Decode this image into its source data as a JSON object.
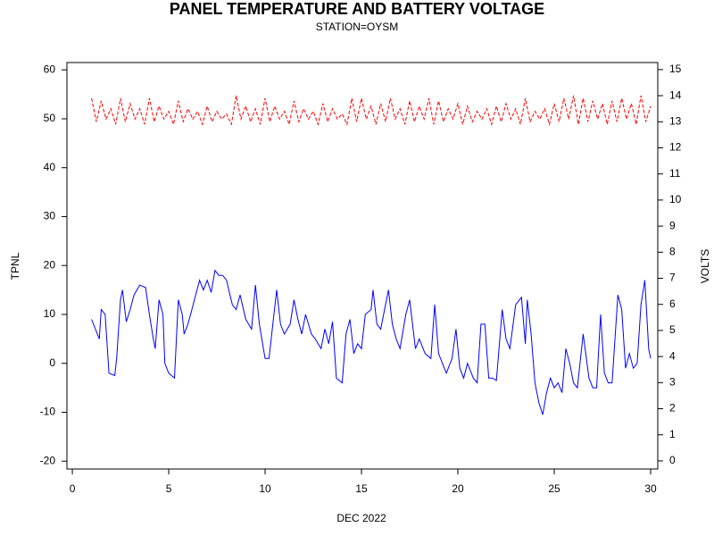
{
  "chart_data": {
    "type": "line",
    "title": "PANEL TEMPERATURE AND BATTERY VOLTAGE",
    "subtitle": "STATION=OYSM",
    "xlabel": "DEC 2022",
    "ylabel": "TPNL",
    "y2label": "VOLTS",
    "xlim": [
      -0.28,
      30.37
    ],
    "xticks": [
      0,
      5,
      10,
      15,
      20,
      25,
      30
    ],
    "ylim": [
      -21.6,
      61.5
    ],
    "yticks": [
      -20,
      -10,
      0,
      10,
      20,
      30,
      40,
      50,
      60
    ],
    "y2lim": [
      -0.31,
      15.27
    ],
    "y2ticks": [
      0,
      1,
      2,
      3,
      4,
      5,
      6,
      7,
      8,
      9,
      10,
      11,
      12,
      13,
      14,
      15
    ],
    "series": [
      {
        "name": "TPNL",
        "color": "#0000ff",
        "axis": "y",
        "x": [
          1.0,
          1.4,
          1.5,
          1.7,
          1.9,
          2.2,
          2.3,
          2.5,
          2.6,
          2.8,
          3.0,
          3.2,
          3.5,
          3.8,
          4.0,
          4.2,
          4.3,
          4.5,
          4.7,
          4.8,
          5.0,
          5.3,
          5.5,
          5.7,
          5.8,
          6.0,
          6.2,
          6.4,
          6.6,
          6.8,
          7.0,
          7.2,
          7.4,
          7.6,
          7.8,
          8.0,
          8.3,
          8.5,
          8.7,
          9.0,
          9.3,
          9.5,
          9.7,
          10.0,
          10.2,
          10.4,
          10.6,
          10.8,
          11.0,
          11.3,
          11.5,
          11.7,
          11.9,
          12.1,
          12.4,
          12.6,
          12.9,
          13.1,
          13.3,
          13.5,
          13.7,
          14.0,
          14.2,
          14.4,
          14.6,
          14.8,
          15.0,
          15.2,
          15.5,
          15.6,
          15.8,
          16.0,
          16.2,
          16.4,
          16.6,
          16.8,
          17.0,
          17.3,
          17.5,
          17.8,
          18.0,
          18.3,
          18.6,
          18.8,
          19.0,
          19.2,
          19.4,
          19.7,
          19.9,
          20.1,
          20.3,
          20.5,
          20.8,
          21.0,
          21.2,
          21.4,
          21.6,
          21.8,
          22.0,
          22.3,
          22.5,
          22.7,
          23.0,
          23.3,
          23.5,
          23.6,
          23.8,
          24.0,
          24.2,
          24.4,
          24.6,
          24.8,
          25.0,
          25.2,
          25.4,
          25.6,
          25.8,
          26.0,
          26.2,
          26.5,
          26.8,
          27.0,
          27.2,
          27.4,
          27.6,
          27.8,
          28.0,
          28.3,
          28.5,
          28.7,
          28.9,
          29.1,
          29.3,
          29.5,
          29.7,
          29.9,
          30.0
        ],
        "values": [
          9,
          5,
          11,
          10,
          -2,
          -2.5,
          1,
          13,
          15,
          8.5,
          11,
          14,
          16,
          15.5,
          10,
          5,
          3,
          13,
          10,
          0,
          -2,
          -3,
          13,
          10,
          6,
          8,
          11,
          14,
          17,
          15,
          17,
          14.5,
          19,
          18,
          18,
          17,
          12,
          11,
          14,
          9,
          7,
          16,
          8,
          1,
          1,
          8,
          15,
          8,
          6,
          8,
          13,
          9,
          6,
          10,
          6,
          5,
          3,
          7,
          4,
          8.5,
          -3,
          -4,
          6,
          9,
          2,
          4,
          3,
          10,
          11,
          15,
          8,
          7,
          11,
          15,
          8,
          5,
          3,
          10,
          13,
          3,
          5,
          2,
          1,
          12,
          2,
          0,
          -2,
          1,
          7,
          -1,
          -3,
          0,
          -3,
          -4,
          8,
          8,
          -3,
          -3,
          -3.5,
          11,
          5,
          3,
          12,
          13.5,
          4,
          13,
          6,
          -4,
          -8,
          -10.5,
          -6,
          -3,
          -5,
          -4,
          -6,
          3,
          0,
          -4,
          -5,
          6,
          -3,
          -5,
          -5,
          10,
          -2,
          -4,
          -4,
          14,
          11,
          -1,
          2,
          -1,
          0,
          12,
          17,
          3,
          1
        ]
      },
      {
        "name": "VOLTS",
        "color": "#ff0000",
        "axis": "y2",
        "x": [
          1.0,
          1.25,
          1.5,
          1.75,
          2.0,
          2.25,
          2.5,
          2.75,
          3.0,
          3.25,
          3.5,
          3.75,
          4.0,
          4.25,
          4.5,
          4.75,
          5.0,
          5.25,
          5.5,
          5.75,
          6.0,
          6.25,
          6.5,
          6.75,
          7.0,
          7.25,
          7.5,
          7.75,
          8.0,
          8.25,
          8.5,
          8.75,
          9.0,
          9.25,
          9.5,
          9.75,
          10.0,
          10.25,
          10.5,
          10.75,
          11.0,
          11.25,
          11.5,
          11.75,
          12.0,
          12.25,
          12.5,
          12.75,
          13.0,
          13.25,
          13.5,
          13.75,
          14.0,
          14.25,
          14.5,
          14.75,
          15.0,
          15.25,
          15.5,
          15.75,
          16.0,
          16.25,
          16.5,
          16.75,
          17.0,
          17.25,
          17.5,
          17.75,
          18.0,
          18.25,
          18.5,
          18.75,
          19.0,
          19.25,
          19.5,
          19.75,
          20.0,
          20.25,
          20.5,
          20.75,
          21.0,
          21.25,
          21.5,
          21.75,
          22.0,
          22.25,
          22.5,
          22.75,
          23.0,
          23.25,
          23.5,
          23.75,
          24.0,
          24.25,
          24.5,
          24.75,
          25.0,
          25.25,
          25.5,
          25.75,
          26.0,
          26.25,
          26.5,
          26.75,
          27.0,
          27.25,
          27.5,
          27.75,
          28.0,
          28.25,
          28.5,
          28.75,
          29.0,
          29.25,
          29.5,
          29.75,
          30.0
        ],
        "values": [
          13.9,
          13.0,
          13.8,
          13.1,
          13.5,
          12.9,
          13.9,
          13.0,
          13.7,
          13.1,
          13.5,
          12.9,
          13.9,
          13.0,
          13.6,
          13.1,
          13.4,
          12.9,
          13.8,
          13.0,
          13.5,
          13.1,
          13.4,
          12.9,
          13.6,
          13.0,
          13.4,
          13.1,
          13.3,
          12.9,
          14.0,
          13.1,
          13.6,
          13.0,
          13.5,
          12.9,
          13.9,
          13.0,
          13.6,
          13.1,
          13.4,
          12.9,
          13.8,
          13.0,
          13.5,
          13.1,
          13.4,
          12.9,
          13.7,
          13.0,
          13.5,
          13.1,
          13.3,
          12.9,
          13.9,
          13.0,
          13.9,
          13.1,
          13.6,
          12.9,
          13.7,
          13.0,
          13.9,
          13.1,
          13.5,
          12.9,
          13.8,
          13.0,
          13.6,
          13.1,
          13.9,
          12.9,
          13.8,
          13.0,
          13.5,
          13.1,
          13.7,
          12.9,
          13.6,
          13.0,
          13.4,
          13.1,
          13.5,
          12.9,
          13.6,
          13.0,
          13.7,
          13.1,
          13.5,
          12.9,
          13.9,
          13.0,
          13.4,
          13.1,
          13.5,
          12.9,
          13.7,
          13.0,
          13.9,
          13.1,
          14.0,
          12.9,
          13.9,
          13.0,
          13.8,
          13.1,
          13.7,
          12.9,
          13.8,
          13.0,
          13.9,
          13.1,
          13.7,
          12.9,
          14.0,
          13.0,
          13.6
        ]
      }
    ]
  }
}
